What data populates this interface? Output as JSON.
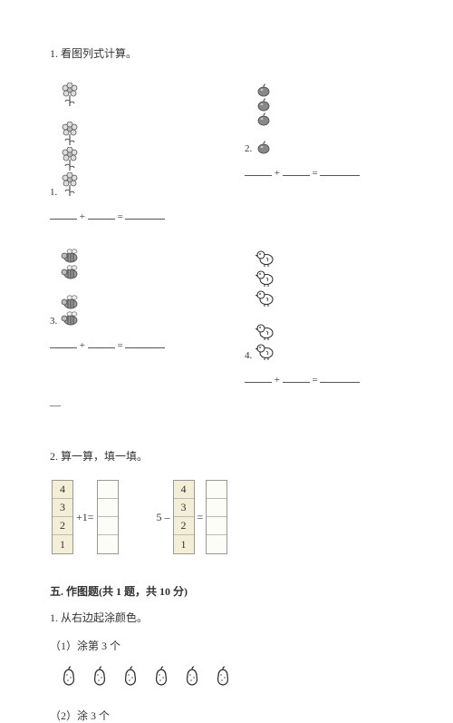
{
  "q1": {
    "title": "1. 看图列式计算。",
    "problems": [
      {
        "label": "1.",
        "icon": "flower",
        "groupA": 1,
        "groupB": 3
      },
      {
        "label": "2.",
        "icon": "apple",
        "groupA": 3,
        "groupB": 1
      },
      {
        "label": "3.",
        "icon": "bee",
        "groupA": 2,
        "groupB": 2
      },
      {
        "label": "4.",
        "icon": "chick",
        "groupA": 3,
        "groupB": 2
      }
    ],
    "plus": "+",
    "equals": "="
  },
  "q2": {
    "title": "2. 算一算，填一填。",
    "left": {
      "stack": [
        "4",
        "3",
        "2",
        "1"
      ],
      "op": "+1="
    },
    "right": {
      "stack": [
        "4",
        "3",
        "2",
        "1"
      ],
      "op_pre": "5 –",
      "op_eq": "="
    }
  },
  "section5": {
    "heading": "五. 作图题(共 1 题，共 10 分)",
    "q1": "1. 从右边起涂颜色。",
    "sub1": "（1）涂第 3 个",
    "sub2": "（2）涂 3 个",
    "pear_count": 6
  },
  "colors": {
    "text": "#333333",
    "cell_filled": "#f3efd6",
    "cell_border": "#999999"
  }
}
